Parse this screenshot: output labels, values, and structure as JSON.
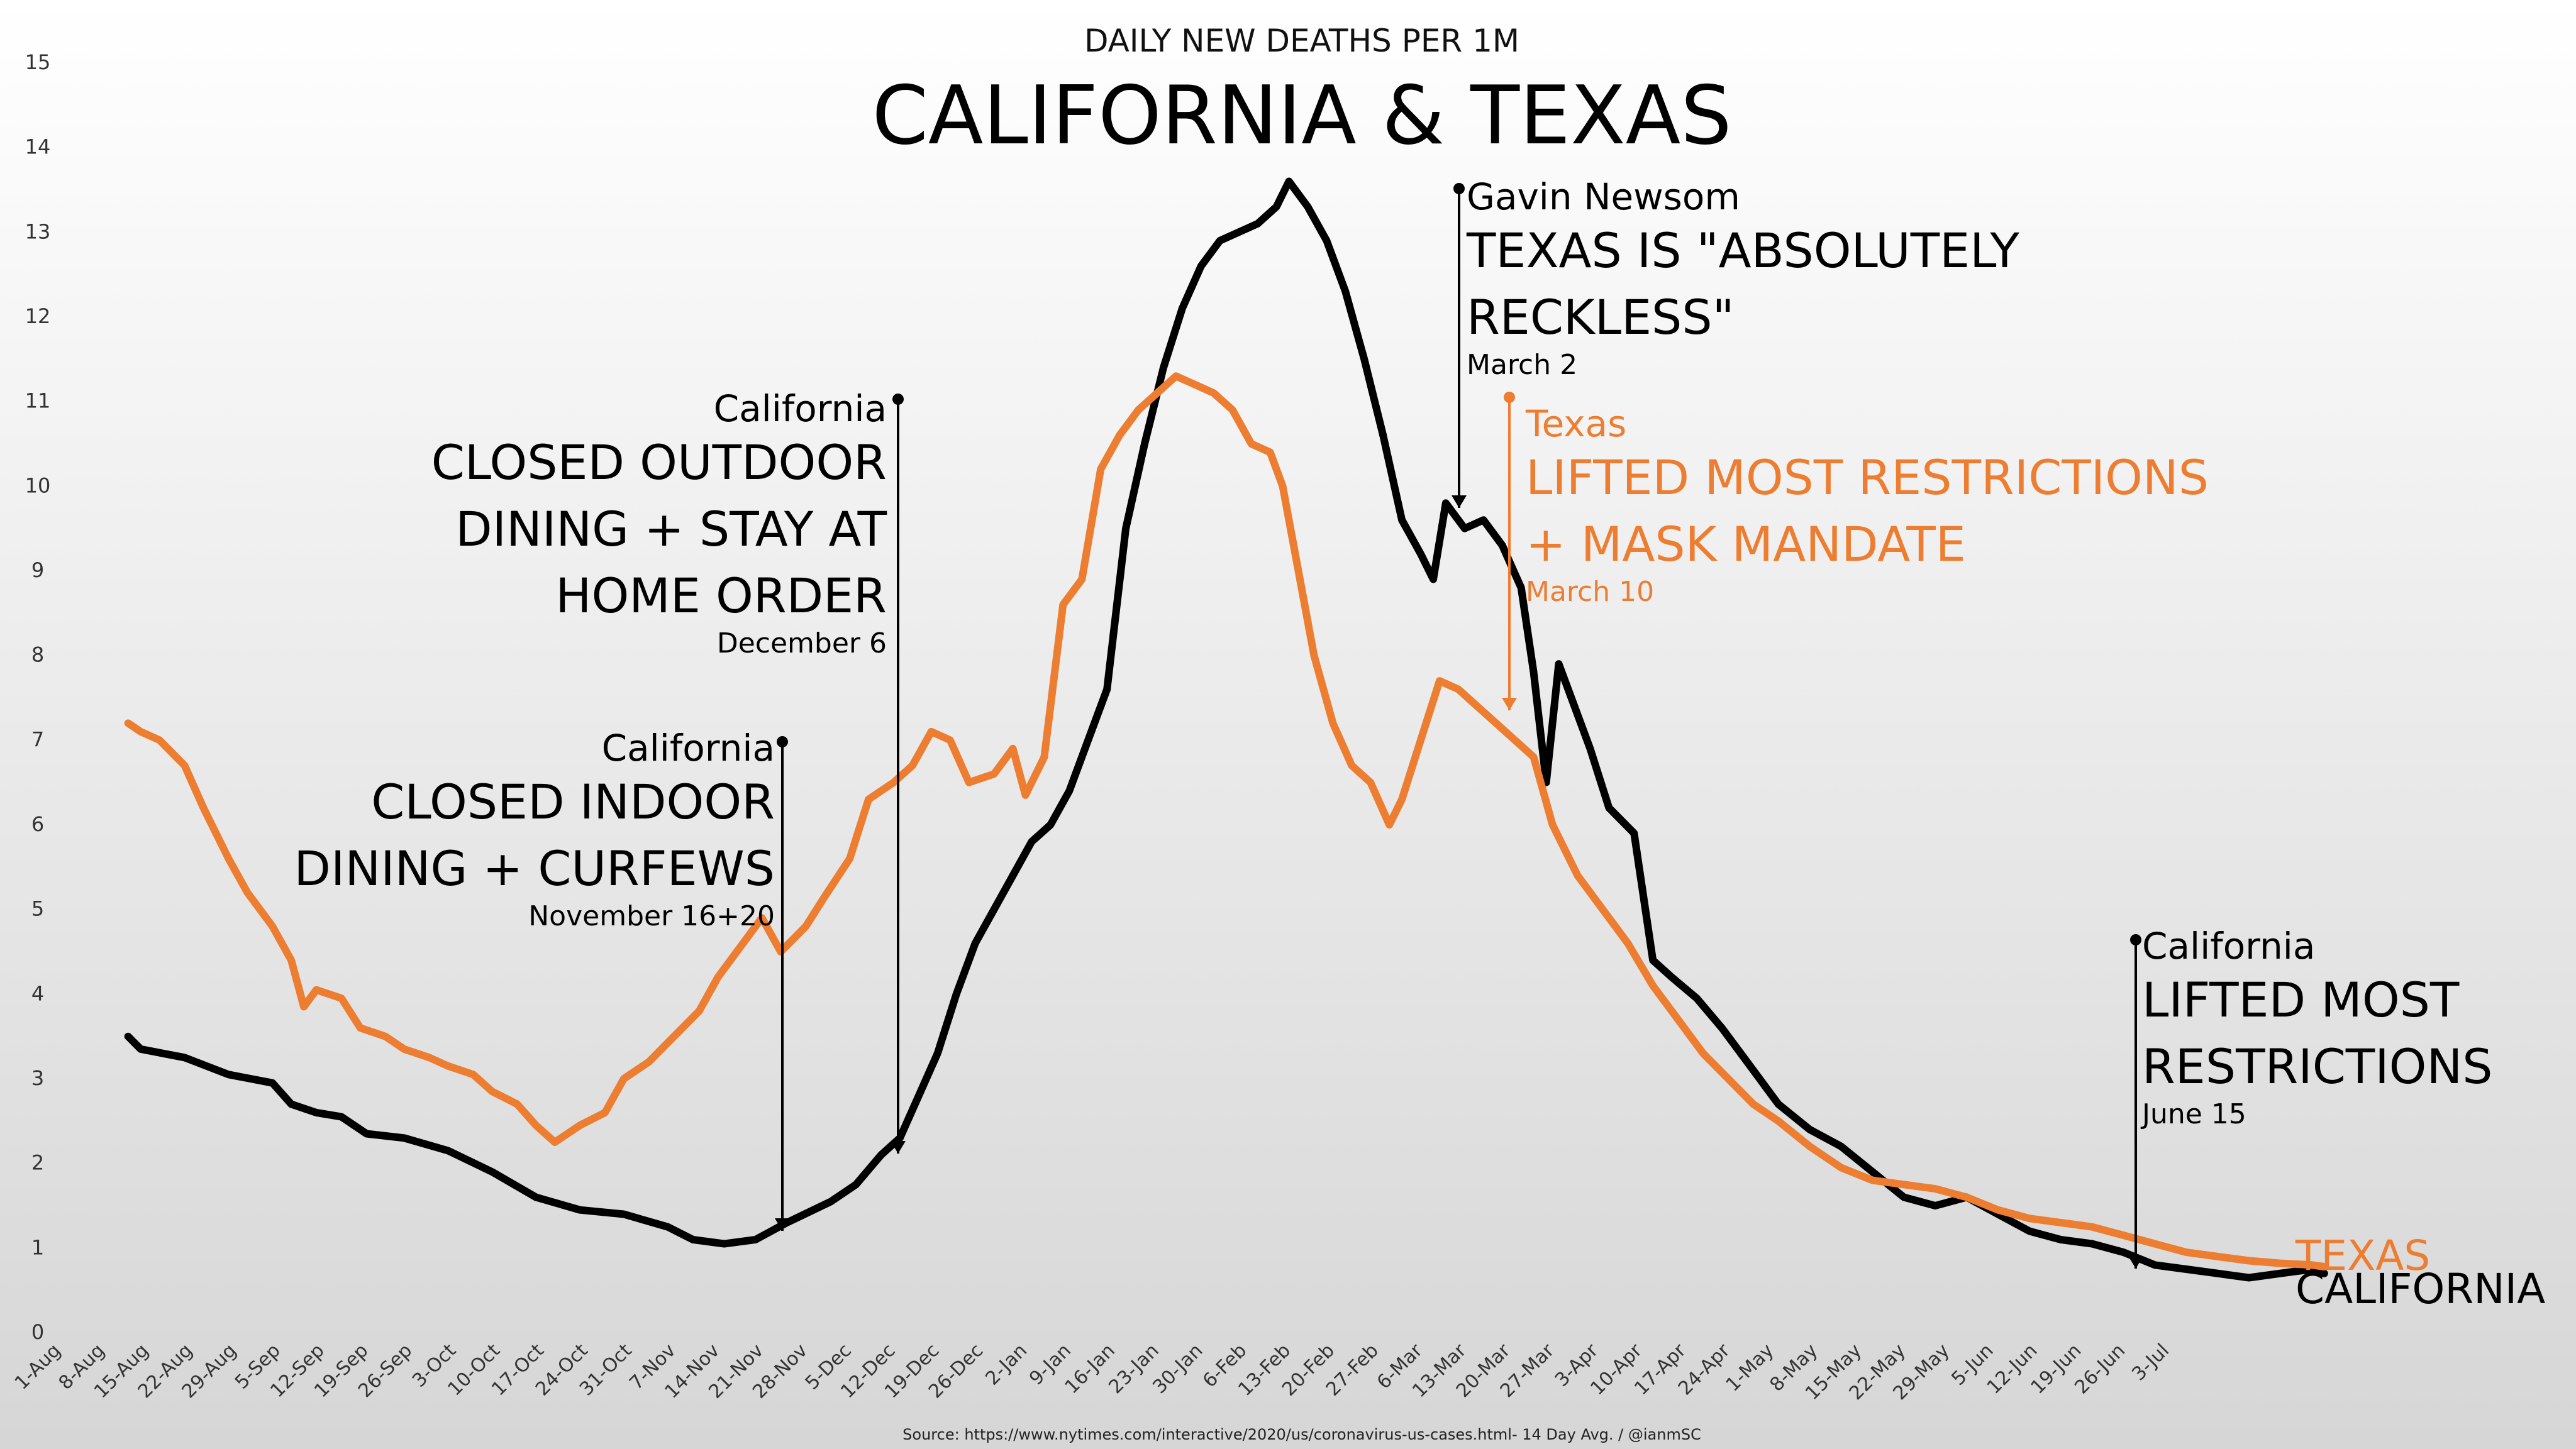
{
  "chart_data": {
    "type": "line",
    "subtitle": "DAILY NEW DEATHS PER 1M",
    "title": "CALIFORNIA & TEXAS",
    "source": "Source: https://www.nytimes.com/interactive/2020/us/coronavirus-us-cases.html- 14 Day Avg. / @ianmSC",
    "ylim": [
      0,
      15
    ],
    "y_ticks": [
      "0",
      "1",
      "2",
      "3",
      "4",
      "5",
      "6",
      "7",
      "8",
      "9",
      "10",
      "11",
      "12",
      "13",
      "14",
      "15"
    ],
    "x_ticks": [
      "1-Aug",
      "8-Aug",
      "15-Aug",
      "22-Aug",
      "29-Aug",
      "5-Sep",
      "12-Sep",
      "19-Sep",
      "26-Sep",
      "3-Oct",
      "10-Oct",
      "17-Oct",
      "24-Oct",
      "31-Oct",
      "7-Nov",
      "14-Nov",
      "21-Nov",
      "28-Nov",
      "5-Dec",
      "12-Dec",
      "19-Dec",
      "26-Dec",
      "2-Jan",
      "9-Jan",
      "16-Jan",
      "23-Jan",
      "30-Jan",
      "6-Feb",
      "13-Feb",
      "20-Feb",
      "27-Feb",
      "6-Mar",
      "13-Mar",
      "20-Mar",
      "27-Mar",
      "3-Apr",
      "10-Apr",
      "17-Apr",
      "24-Apr",
      "1-May",
      "8-May",
      "15-May",
      "22-May",
      "29-May",
      "5-Jun",
      "12-Jun",
      "19-Jun",
      "26-Jun",
      "3-Jul"
    ],
    "grid": false,
    "series": [
      {
        "name": "CALIFORNIA",
        "color": "#000000",
        "points": [
          [
            12,
            3.5
          ],
          [
            14,
            3.35
          ],
          [
            21,
            3.25
          ],
          [
            28,
            3.05
          ],
          [
            35,
            2.95
          ],
          [
            38,
            2.7
          ],
          [
            42,
            2.6
          ],
          [
            46,
            2.55
          ],
          [
            50,
            2.35
          ],
          [
            56,
            2.3
          ],
          [
            63,
            2.15
          ],
          [
            70,
            1.9
          ],
          [
            77,
            1.6
          ],
          [
            84,
            1.45
          ],
          [
            91,
            1.4
          ],
          [
            98,
            1.25
          ],
          [
            102,
            1.1
          ],
          [
            107,
            1.05
          ],
          [
            112,
            1.1
          ],
          [
            117,
            1.3
          ],
          [
            124,
            1.55
          ],
          [
            128,
            1.75
          ],
          [
            132,
            2.1
          ],
          [
            135,
            2.3
          ],
          [
            138,
            2.8
          ],
          [
            141,
            3.3
          ],
          [
            144,
            4.0
          ],
          [
            147,
            4.6
          ],
          [
            150,
            5.0
          ],
          [
            153,
            5.4
          ],
          [
            156,
            5.8
          ],
          [
            159,
            6.0
          ],
          [
            162,
            6.4
          ],
          [
            165,
            7.0
          ],
          [
            168,
            7.6
          ],
          [
            171,
            9.5
          ],
          [
            174,
            10.5
          ],
          [
            177,
            11.4
          ],
          [
            180,
            12.1
          ],
          [
            183,
            12.6
          ],
          [
            186,
            12.9
          ],
          [
            189,
            13.0
          ],
          [
            192,
            13.1
          ],
          [
            195,
            13.3
          ],
          [
            197,
            13.6
          ],
          [
            200,
            13.3
          ],
          [
            203,
            12.9
          ],
          [
            206,
            12.3
          ],
          [
            209,
            11.5
          ],
          [
            212,
            10.6
          ],
          [
            215,
            9.6
          ],
          [
            218,
            9.2
          ],
          [
            220,
            8.9
          ],
          [
            222,
            9.8
          ],
          [
            225,
            9.5
          ],
          [
            228,
            9.6
          ],
          [
            231,
            9.3
          ],
          [
            234,
            8.8
          ],
          [
            236,
            7.8
          ],
          [
            238,
            6.5
          ],
          [
            240,
            7.9
          ],
          [
            242,
            7.5
          ],
          [
            245,
            6.9
          ],
          [
            248,
            6.2
          ],
          [
            252,
            5.9
          ],
          [
            255,
            4.4
          ],
          [
            258,
            4.2
          ],
          [
            262,
            3.95
          ],
          [
            266,
            3.6
          ],
          [
            270,
            3.2
          ],
          [
            275,
            2.7
          ],
          [
            280,
            2.4
          ],
          [
            285,
            2.2
          ],
          [
            290,
            1.9
          ],
          [
            295,
            1.6
          ],
          [
            300,
            1.5
          ],
          [
            305,
            1.6
          ],
          [
            310,
            1.4
          ],
          [
            315,
            1.2
          ],
          [
            320,
            1.1
          ],
          [
            325,
            1.05
          ],
          [
            330,
            0.95
          ],
          [
            335,
            0.8
          ],
          [
            340,
            0.75
          ],
          [
            345,
            0.7
          ],
          [
            350,
            0.65
          ],
          [
            355,
            0.7
          ],
          [
            360,
            0.75
          ],
          [
            362,
            0.7
          ]
        ]
      },
      {
        "name": "TEXAS",
        "color": "#ED7D31",
        "points": [
          [
            12,
            7.2
          ],
          [
            14,
            7.1
          ],
          [
            17,
            7.0
          ],
          [
            21,
            6.7
          ],
          [
            24,
            6.2
          ],
          [
            28,
            5.6
          ],
          [
            31,
            5.2
          ],
          [
            35,
            4.8
          ],
          [
            38,
            4.4
          ],
          [
            40,
            3.85
          ],
          [
            42,
            4.05
          ],
          [
            46,
            3.95
          ],
          [
            49,
            3.6
          ],
          [
            53,
            3.5
          ],
          [
            56,
            3.35
          ],
          [
            60,
            3.25
          ],
          [
            63,
            3.15
          ],
          [
            67,
            3.05
          ],
          [
            70,
            2.85
          ],
          [
            74,
            2.7
          ],
          [
            77,
            2.45
          ],
          [
            80,
            2.25
          ],
          [
            84,
            2.45
          ],
          [
            88,
            2.6
          ],
          [
            91,
            3.0
          ],
          [
            95,
            3.2
          ],
          [
            99,
            3.5
          ],
          [
            103,
            3.8
          ],
          [
            106,
            4.2
          ],
          [
            110,
            4.6
          ],
          [
            113,
            4.9
          ],
          [
            116,
            4.5
          ],
          [
            120,
            4.8
          ],
          [
            123,
            5.15
          ],
          [
            127,
            5.6
          ],
          [
            130,
            6.3
          ],
          [
            134,
            6.5
          ],
          [
            137,
            6.7
          ],
          [
            140,
            7.1
          ],
          [
            143,
            7.0
          ],
          [
            146,
            6.5
          ],
          [
            150,
            6.6
          ],
          [
            153,
            6.9
          ],
          [
            155,
            6.35
          ],
          [
            158,
            6.8
          ],
          [
            161,
            8.6
          ],
          [
            164,
            8.9
          ],
          [
            167,
            10.2
          ],
          [
            170,
            10.6
          ],
          [
            173,
            10.9
          ],
          [
            176,
            11.1
          ],
          [
            179,
            11.3
          ],
          [
            182,
            11.2
          ],
          [
            185,
            11.1
          ],
          [
            188,
            10.9
          ],
          [
            191,
            10.5
          ],
          [
            194,
            10.4
          ],
          [
            196,
            10.0
          ],
          [
            198,
            9.2
          ],
          [
            201,
            8.0
          ],
          [
            204,
            7.2
          ],
          [
            207,
            6.7
          ],
          [
            210,
            6.5
          ],
          [
            213,
            6.0
          ],
          [
            215,
            6.3
          ],
          [
            218,
            7.0
          ],
          [
            221,
            7.7
          ],
          [
            224,
            7.6
          ],
          [
            227,
            7.4
          ],
          [
            230,
            7.2
          ],
          [
            233,
            7.0
          ],
          [
            236,
            6.8
          ],
          [
            239,
            6.0
          ],
          [
            243,
            5.4
          ],
          [
            247,
            5.0
          ],
          [
            251,
            4.6
          ],
          [
            255,
            4.1
          ],
          [
            259,
            3.7
          ],
          [
            263,
            3.3
          ],
          [
            267,
            3.0
          ],
          [
            271,
            2.7
          ],
          [
            275,
            2.5
          ],
          [
            280,
            2.2
          ],
          [
            285,
            1.95
          ],
          [
            290,
            1.8
          ],
          [
            295,
            1.75
          ],
          [
            300,
            1.7
          ],
          [
            305,
            1.6
          ],
          [
            310,
            1.45
          ],
          [
            315,
            1.35
          ],
          [
            320,
            1.3
          ],
          [
            325,
            1.25
          ],
          [
            330,
            1.15
          ],
          [
            335,
            1.05
          ],
          [
            340,
            0.95
          ],
          [
            345,
            0.9
          ],
          [
            350,
            0.85
          ],
          [
            355,
            0.82
          ],
          [
            360,
            0.8
          ],
          [
            362,
            0.78
          ]
        ]
      }
    ],
    "series_labels": {
      "texas": "TEXAS",
      "california": "CALIFORNIA"
    },
    "annotations": [
      {
        "id": "nov",
        "heading": "California",
        "lines": [
          "CLOSED INDOOR",
          "DINING + CURFEWS"
        ],
        "date": "November 16+20",
        "color": "#000000"
      },
      {
        "id": "dec",
        "heading": "California",
        "lines": [
          "CLOSED OUTDOOR",
          "DINING + STAY AT",
          "HOME ORDER"
        ],
        "date": "December 6",
        "color": "#000000"
      },
      {
        "id": "newsom",
        "heading": "Gavin Newsom",
        "lines": [
          "TEXAS IS \"ABSOLUTELY",
          "RECKLESS\""
        ],
        "date": "March 2",
        "color": "#000000"
      },
      {
        "id": "texas",
        "heading": "Texas",
        "lines": [
          "LIFTED MOST RESTRICTIONS",
          "+ MASK MANDATE"
        ],
        "date": "March 10",
        "color": "#ED7D31"
      },
      {
        "id": "june",
        "heading": "California",
        "lines": [
          "LIFTED MOST",
          "RESTRICTIONS"
        ],
        "date": "June 15",
        "color": "#000000"
      }
    ]
  }
}
